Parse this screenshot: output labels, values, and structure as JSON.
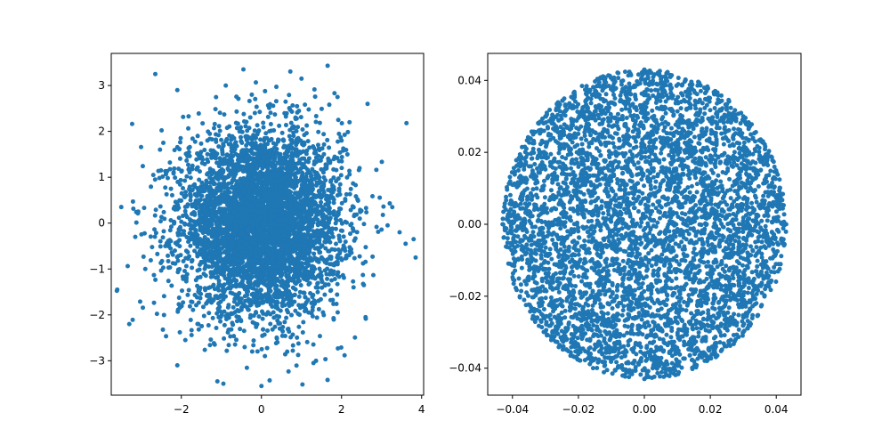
{
  "chart_data": [
    {
      "type": "scatter",
      "title": "",
      "xlabel": "",
      "ylabel": "",
      "xlim": [
        -3.75,
        4.05
      ],
      "ylim": [
        -3.75,
        3.7
      ],
      "grid": false,
      "x_ticks": [
        -2,
        0,
        2,
        4
      ],
      "x_tick_labels": [
        "−2",
        "0",
        "2",
        "4"
      ],
      "y_ticks": [
        -3,
        -2,
        -1,
        0,
        1,
        2,
        3
      ],
      "y_tick_labels": [
        "−3",
        "−2",
        "−1",
        "0",
        "1",
        "2",
        "3"
      ],
      "marker_color": "#1f77b4",
      "series": [
        {
          "distribution": "2D standard normal, about 5000 points",
          "points": [
            [
              -2.65,
              3.25
            ],
            [
              -0.45,
              3.35
            ],
            [
              -2.1,
              2.9
            ],
            [
              1.0,
              3.15
            ],
            [
              2.65,
              2.6
            ],
            [
              1.9,
              2.75
            ],
            [
              -3.5,
              0.35
            ],
            [
              -3.6,
              -1.45
            ],
            [
              -3.3,
              -2.2
            ],
            [
              -3.15,
              -0.3
            ],
            [
              -2.9,
              -1.0
            ],
            [
              3.15,
              -0.05
            ],
            [
              3.45,
              -0.2
            ],
            [
              3.8,
              -0.35
            ],
            [
              3.85,
              -0.75
            ],
            [
              3.6,
              -0.45
            ],
            [
              -2.1,
              -3.1
            ],
            [
              -1.1,
              -3.45
            ],
            [
              0.0,
              -3.55
            ],
            [
              1.3,
              -3.05
            ],
            [
              -0.95,
              -3.5
            ],
            [
              2.6,
              -2.05
            ],
            [
              2.45,
              1.2
            ],
            [
              -2.45,
              1.75
            ],
            [
              2.2,
              2.2
            ],
            [
              2.0,
              1.8
            ],
            [
              -2.7,
              1.05
            ],
            [
              -2.4,
              -0.5
            ],
            [
              2.3,
              -1.4
            ],
            [
              -1.9,
              -2.55
            ],
            [
              0.85,
              2.3
            ]
          ]
        }
      ]
    },
    {
      "type": "scatter",
      "title": "",
      "xlabel": "",
      "ylabel": "",
      "xlim": [
        -0.0475,
        0.0475
      ],
      "ylim": [
        -0.0475,
        0.0475
      ],
      "grid": false,
      "x_ticks": [
        -0.04,
        -0.02,
        0.0,
        0.02,
        0.04
      ],
      "x_tick_labels": [
        "−0.04",
        "−0.02",
        "0.00",
        "0.02",
        "0.04"
      ],
      "y_ticks": [
        -0.04,
        -0.02,
        0.0,
        0.02,
        0.04
      ],
      "y_tick_labels": [
        "−0.04",
        "−0.02",
        "0.00",
        "0.02",
        "0.04"
      ],
      "marker_color": "#1f77b4",
      "series": [
        {
          "distribution": "uniform points inside a disk of radius about 0.043, about 5000 points",
          "points": [
            [
              0.0,
              0.043
            ],
            [
              -0.043,
              0.0
            ],
            [
              0.043,
              0.0
            ],
            [
              0.0,
              -0.043
            ],
            [
              0.03,
              0.03
            ],
            [
              -0.03,
              0.03
            ],
            [
              0.03,
              -0.03
            ],
            [
              -0.03,
              -0.03
            ]
          ]
        }
      ]
    }
  ]
}
